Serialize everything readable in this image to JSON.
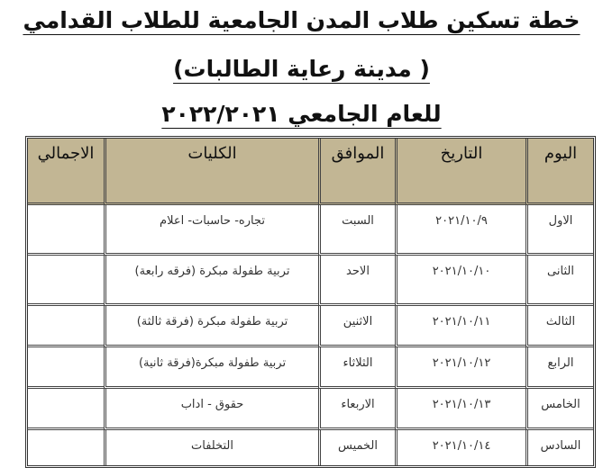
{
  "title": {
    "line1": "خطة تسكين طلاب المدن الجامعية للطلاب القدامي",
    "line2": "( مدينة رعاية الطالبات)",
    "line3": "للعام الجامعي ٢٠٢٢/٢٠٢١"
  },
  "table": {
    "headers": [
      "اليوم",
      "التاريخ",
      "الموافق",
      "الكليات",
      "الاجمالي"
    ],
    "rows": [
      {
        "day": "الاول",
        "date": "٢٠٢١/١٠/٩",
        "weekday": "السبت",
        "colleges": "تجاره- حاسبات- اعلام",
        "total": ""
      },
      {
        "day": "الثانى",
        "date": "٢٠٢١/١٠/١٠",
        "weekday": "الاحد",
        "colleges": "تربية طفولة مبكرة (فرقه رابعة)",
        "total": ""
      },
      {
        "day": "الثالث",
        "date": "٢٠٢١/١٠/١١",
        "weekday": "الاثنين",
        "colleges": "تربية طفولة مبكرة (فرقة ثالثة)",
        "total": ""
      },
      {
        "day": "الرابع",
        "date": "٢٠٢١/١٠/١٢",
        "weekday": "الثلاثاء",
        "colleges": "تربية طفولة مبكرة(فرقة ثانية)",
        "total": ""
      },
      {
        "day": "الخامس",
        "date": "٢٠٢١/١٠/١٣",
        "weekday": "الاربعاء",
        "colleges": "حقوق - اداب",
        "total": ""
      },
      {
        "day": "السادس",
        "date": "٢٠٢١/١٠/١٤",
        "weekday": "الخميس",
        "colleges": "التخلفات",
        "total": ""
      }
    ]
  },
  "colors": {
    "header_bg": "#c2b694"
  }
}
